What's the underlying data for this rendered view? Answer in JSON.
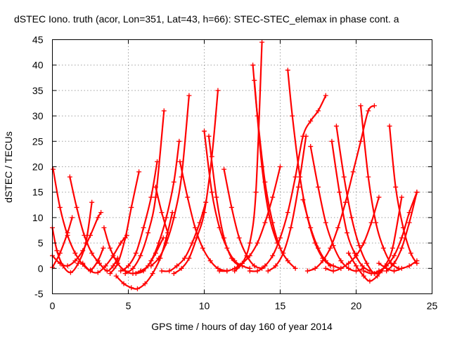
{
  "chart_data": {
    "type": "scatter",
    "title": "dSTEC Iono. truth (acor, Lon=351, Lat=43, h=66): STEC-STEC_elemax in phase cont. a",
    "xlabel": "GPS time / hours of day 160 of year 2014",
    "ylabel": "dSTEC  / TECUs",
    "xlim": [
      0,
      25
    ],
    "ylim": [
      -5,
      45
    ],
    "xticks": [
      0,
      5,
      10,
      15,
      20,
      25
    ],
    "yticks": [
      -5,
      0,
      5,
      10,
      15,
      20,
      25,
      30,
      35,
      40,
      45
    ],
    "grid": true,
    "marker": "plus",
    "color": "#ff0000",
    "series": [
      {
        "x": [
          0.05,
          0.5,
          1.0,
          1.5,
          2.0,
          2.5,
          3.0,
          3.35
        ],
        "y": [
          19.5,
          12.0,
          6.5,
          3.0,
          0.8,
          -0.3,
          1.5,
          4.0
        ]
      },
      {
        "x": [
          0.0,
          0.3,
          0.7,
          1.2,
          1.7,
          2.2,
          2.6
        ],
        "y": [
          8.0,
          3.5,
          0.5,
          -0.8,
          1.0,
          5.0,
          13.0
        ]
      },
      {
        "x": [
          0.0,
          0.5,
          1.0,
          1.5,
          2.0,
          2.5,
          3.0,
          3.2
        ],
        "y": [
          2.5,
          1.0,
          0.5,
          1.5,
          3.5,
          6.5,
          10.0,
          11.0
        ]
      },
      {
        "x": [
          0.0,
          0.5,
          1.0,
          1.3
        ],
        "y": [
          0.2,
          3.0,
          7.0,
          10.0
        ]
      },
      {
        "x": [
          1.15,
          1.6,
          2.1,
          2.6,
          3.1,
          3.6,
          4.0,
          4.3
        ],
        "y": [
          18.0,
          12.0,
          6.5,
          3.0,
          1.0,
          -0.5,
          0.5,
          2.0
        ]
      },
      {
        "x": [
          3.4,
          3.8,
          4.3,
          4.8,
          5.3,
          5.8,
          6.3,
          6.8,
          7.3
        ],
        "y": [
          8.0,
          4.0,
          1.0,
          -0.5,
          -1.0,
          -0.5,
          0.5,
          3.0,
          6.0
        ]
      },
      {
        "x": [
          2.0,
          2.5,
          3.0,
          3.5,
          4.0,
          4.5,
          4.9
        ],
        "y": [
          1.0,
          -0.5,
          -0.8,
          0.5,
          2.5,
          5.0,
          6.5
        ]
      },
      {
        "x": [
          4.2,
          4.7,
          5.2,
          5.6,
          6.1,
          6.6,
          7.1,
          7.5,
          7.9
        ],
        "y": [
          -1.5,
          -3.0,
          -3.8,
          -4.0,
          -3.0,
          -1.0,
          2.0,
          6.0,
          11.0
        ]
      },
      {
        "x": [
          3.8,
          4.3,
          4.8,
          5.2,
          5.7
        ],
        "y": [
          -1.0,
          1.0,
          6.0,
          12.0,
          19.0
        ]
      },
      {
        "x": [
          4.5,
          5.0,
          5.5,
          6.0,
          6.5,
          6.9
        ],
        "y": [
          -0.5,
          0.5,
          3.0,
          8.0,
          14.0,
          21.0
        ]
      },
      {
        "x": [
          4.8,
          5.3,
          5.8,
          6.3,
          6.8,
          7.35
        ],
        "y": [
          -1.0,
          0.0,
          2.5,
          7.0,
          14.0,
          31.0
        ]
      },
      {
        "x": [
          5.5,
          6.0,
          6.5,
          7.0,
          7.5,
          8.0,
          8.35
        ],
        "y": [
          -1.0,
          -0.5,
          1.5,
          5.0,
          10.0,
          17.0,
          25.0
        ]
      },
      {
        "x": [
          6.5,
          7.0,
          7.5,
          8.0,
          8.5,
          9.0
        ],
        "y": [
          0.5,
          2.0,
          5.0,
          10.0,
          18.0,
          34.0
        ]
      },
      {
        "x": [
          6.8,
          7.2,
          7.6
        ],
        "y": [
          16.0,
          11.0,
          7.0
        ]
      },
      {
        "x": [
          8.4,
          8.9,
          9.4,
          9.9,
          10.4,
          10.9,
          11.5
        ],
        "y": [
          21.0,
          14.0,
          8.0,
          4.0,
          1.5,
          0.0,
          -0.5
        ]
      },
      {
        "x": [
          7.2,
          7.7,
          8.2,
          8.7,
          9.2,
          9.7,
          10.1
        ],
        "y": [
          -0.5,
          -0.5,
          0.5,
          2.0,
          5.0,
          9.0,
          13.0
        ]
      },
      {
        "x": [
          8.0,
          8.5,
          9.0,
          9.5,
          10.0,
          10.5,
          10.9
        ],
        "y": [
          -1.0,
          0.0,
          2.0,
          6.0,
          11.0,
          22.0,
          35.0
        ]
      },
      {
        "x": [
          10.0,
          10.5,
          11.0,
          11.5,
          12.0,
          12.5,
          13.0
        ],
        "y": [
          27.0,
          15.0,
          8.0,
          4.0,
          1.5,
          0.5,
          0.0
        ]
      },
      {
        "x": [
          10.3,
          10.8,
          11.3,
          11.8,
          12.3
        ],
        "y": [
          26.0,
          14.0,
          6.0,
          2.0,
          0.5
        ]
      },
      {
        "x": [
          11.3,
          11.8,
          12.3,
          12.8,
          13.3,
          13.8
        ],
        "y": [
          19.5,
          12.0,
          6.0,
          2.5,
          0.5,
          0.0
        ]
      },
      {
        "x": [
          11.0,
          11.5,
          12.0,
          12.5,
          13.0,
          13.5,
          14.0,
          14.5,
          15.0
        ],
        "y": [
          -0.5,
          -0.5,
          0.0,
          1.0,
          2.5,
          5.0,
          9.0,
          14.0,
          20.0
        ]
      },
      {
        "x": [
          12.0,
          12.5,
          13.0,
          13.4,
          13.8
        ],
        "y": [
          -0.5,
          1.0,
          5.0,
          15.0,
          44.5
        ]
      },
      {
        "x": [
          13.2,
          13.5,
          14.0,
          14.5,
          15.0,
          15.5,
          16.0
        ],
        "y": [
          40.0,
          30.0,
          17.0,
          9.0,
          4.0,
          1.5,
          0.0
        ]
      },
      {
        "x": [
          13.3,
          13.8,
          14.3,
          14.8
        ],
        "y": [
          37.0,
          20.0,
          10.0,
          5.0
        ]
      },
      {
        "x": [
          13.0,
          13.5,
          14.0,
          14.5,
          15.0,
          15.5,
          16.0,
          16.5,
          17.0,
          17.5,
          18.0
        ],
        "y": [
          -0.5,
          -0.5,
          0.5,
          2.5,
          6.0,
          11.0,
          18.0,
          26.0,
          29.0,
          31.0,
          34.0
        ]
      },
      {
        "x": [
          14.2,
          14.7,
          15.2,
          15.7,
          16.2,
          16.7
        ],
        "y": [
          -0.5,
          0.5,
          3.0,
          8.0,
          16.0,
          26.0
        ]
      },
      {
        "x": [
          15.5,
          15.8,
          16.3,
          16.8,
          17.3,
          17.8,
          18.3
        ],
        "y": [
          39.0,
          30.0,
          18.0,
          10.0,
          5.0,
          2.0,
          0.5
        ]
      },
      {
        "x": [
          16.5,
          17.0,
          17.5,
          18.0,
          18.5,
          19.0
        ],
        "y": [
          13.5,
          8.0,
          4.0,
          1.5,
          0.5,
          0.0
        ]
      },
      {
        "x": [
          17.0,
          17.5,
          18.0,
          18.5,
          19.0,
          19.5,
          20.0,
          20.5
        ],
        "y": [
          24.0,
          16.0,
          9.0,
          4.5,
          1.5,
          0.0,
          -0.5,
          0.0
        ]
      },
      {
        "x": [
          18.4,
          18.9,
          19.4,
          19.9,
          20.4,
          20.9
        ],
        "y": [
          25.0,
          15.0,
          7.0,
          3.0,
          0.5,
          -0.5
        ]
      },
      {
        "x": [
          18.7,
          19.2,
          19.7,
          20.2,
          20.7,
          21.2,
          21.7
        ],
        "y": [
          28.0,
          18.0,
          10.0,
          4.5,
          1.0,
          -1.0,
          -0.5
        ]
      },
      {
        "x": [
          16.8,
          17.3,
          17.8,
          18.3,
          18.8,
          19.3,
          19.8,
          20.3,
          20.8,
          21.2
        ],
        "y": [
          -0.5,
          0.0,
          1.5,
          4.0,
          8.0,
          13.0,
          19.0,
          25.0,
          31.0,
          32.0
        ]
      },
      {
        "x": [
          20.3,
          20.8,
          21.3,
          21.8,
          22.3,
          22.8
        ],
        "y": [
          32.0,
          18.0,
          9.0,
          4.0,
          1.0,
          0.0
        ]
      },
      {
        "x": [
          18.0,
          18.5,
          19.0,
          19.5,
          20.0,
          20.5,
          21.0,
          21.5
        ],
        "y": [
          0.0,
          -0.5,
          0.0,
          1.0,
          2.5,
          5.0,
          9.0,
          14.0
        ]
      },
      {
        "x": [
          19.5,
          20.0,
          20.5,
          20.9,
          21.4,
          21.9,
          22.4,
          23.0
        ],
        "y": [
          3.0,
          0.5,
          -1.5,
          -2.5,
          -1.5,
          0.5,
          4.0,
          14.0
        ]
      },
      {
        "x": [
          20.5,
          21.0,
          21.5,
          22.0,
          22.5,
          23.0,
          23.5,
          24.0
        ],
        "y": [
          -0.5,
          -1.0,
          -0.5,
          0.5,
          2.5,
          6.0,
          11.0,
          15.0
        ]
      },
      {
        "x": [
          22.2,
          22.6,
          23.1,
          23.6,
          24.0
        ],
        "y": [
          28.0,
          16.0,
          8.0,
          3.0,
          1.0
        ]
      },
      {
        "x": [
          21.5,
          22.0,
          22.5,
          23.0,
          23.5,
          24.0
        ],
        "y": [
          1.0,
          0.0,
          -0.5,
          0.0,
          0.5,
          1.5
        ]
      },
      {
        "x": [
          22.0,
          22.5,
          23.0,
          23.5,
          24.0
        ],
        "y": [
          -0.5,
          1.0,
          4.0,
          9.0,
          15.0
        ]
      }
    ]
  }
}
